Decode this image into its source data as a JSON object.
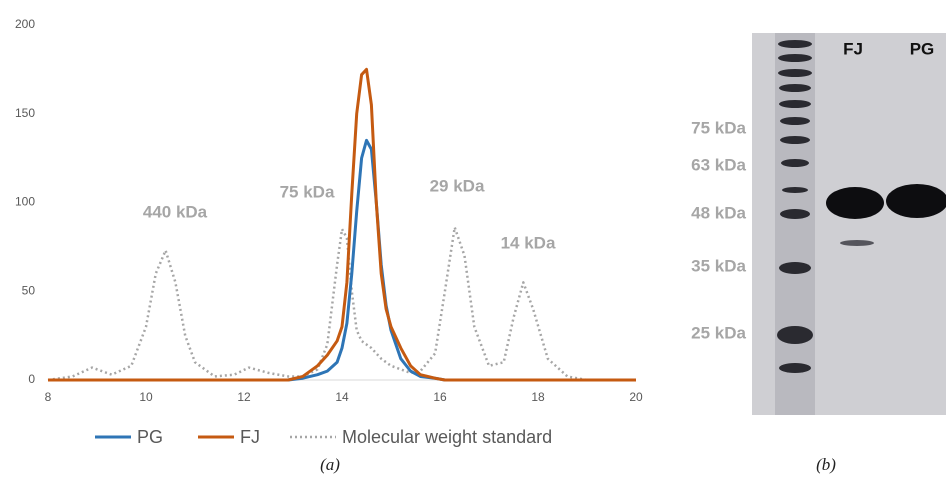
{
  "chart_data": {
    "type": "line",
    "x": [
      8,
      8.5,
      8.9,
      9.3,
      9.7,
      10.0,
      10.2,
      10.4,
      10.6,
      10.8,
      11.0,
      11.4,
      11.8,
      12.1,
      12.5,
      12.9,
      13.2,
      13.5,
      13.7,
      13.9,
      14.0,
      14.1,
      14.2,
      14.3,
      14.4,
      14.5,
      14.6,
      14.7,
      14.8,
      14.9,
      15.0,
      15.2,
      15.4,
      15.6,
      15.9,
      16.1,
      16.3,
      16.5,
      16.7,
      17.0,
      17.3,
      17.5,
      17.7,
      17.9,
      18.2,
      18.6,
      19.0,
      20
    ],
    "series": [
      {
        "name": "PG",
        "color": "#2e75b6",
        "line_style": "solid",
        "values": [
          0,
          0,
          0,
          0,
          0,
          0,
          0,
          0,
          0,
          0,
          0,
          0,
          0,
          0,
          0,
          0,
          1,
          3,
          5,
          10,
          18,
          32,
          60,
          95,
          125,
          135,
          130,
          100,
          65,
          42,
          28,
          12,
          5,
          2,
          1,
          0,
          0,
          0,
          0,
          0,
          0,
          0,
          0,
          0,
          0,
          0,
          0,
          0
        ]
      },
      {
        "name": "FJ",
        "color": "#c55a11",
        "line_style": "solid",
        "values": [
          0,
          0,
          0,
          0,
          0,
          0,
          0,
          0,
          0,
          0,
          0,
          0,
          0,
          0,
          0,
          0,
          2,
          8,
          14,
          22,
          30,
          55,
          105,
          150,
          172,
          175,
          155,
          100,
          60,
          40,
          30,
          18,
          8,
          3,
          1,
          0,
          0,
          0,
          0,
          0,
          0,
          0,
          0,
          0,
          0,
          0,
          0,
          0
        ]
      },
      {
        "name": "Molecular weight standard",
        "color": "#a6a6a6",
        "line_style": "dotted",
        "values": [
          0,
          2,
          7,
          3,
          8,
          30,
          60,
          73,
          55,
          25,
          10,
          2,
          3,
          7,
          4,
          2,
          2,
          6,
          20,
          65,
          85,
          80,
          50,
          28,
          22,
          20,
          18,
          15,
          12,
          10,
          8,
          6,
          4,
          5,
          15,
          50,
          86,
          70,
          30,
          8,
          10,
          35,
          55,
          40,
          12,
          2,
          0,
          0
        ]
      }
    ],
    "xlim": [
      8,
      20
    ],
    "xticks": [
      8,
      10,
      12,
      14,
      16,
      18,
      20
    ],
    "ylim": [
      0,
      200
    ],
    "yticks": [
      0,
      50,
      100,
      150,
      200
    ],
    "grid": false,
    "legend": "bottom",
    "annotations": [
      "440 kDa",
      "75 kDa",
      "29 kDa",
      "14 kDa"
    ]
  },
  "gel": {
    "lanes": [
      "FJ",
      "PG"
    ],
    "markers": [
      "75 kDa",
      "63 kDa",
      "48 kDa",
      "35 kDa",
      "25 kDa"
    ]
  },
  "captions": [
    "(a)",
    "(b)"
  ]
}
